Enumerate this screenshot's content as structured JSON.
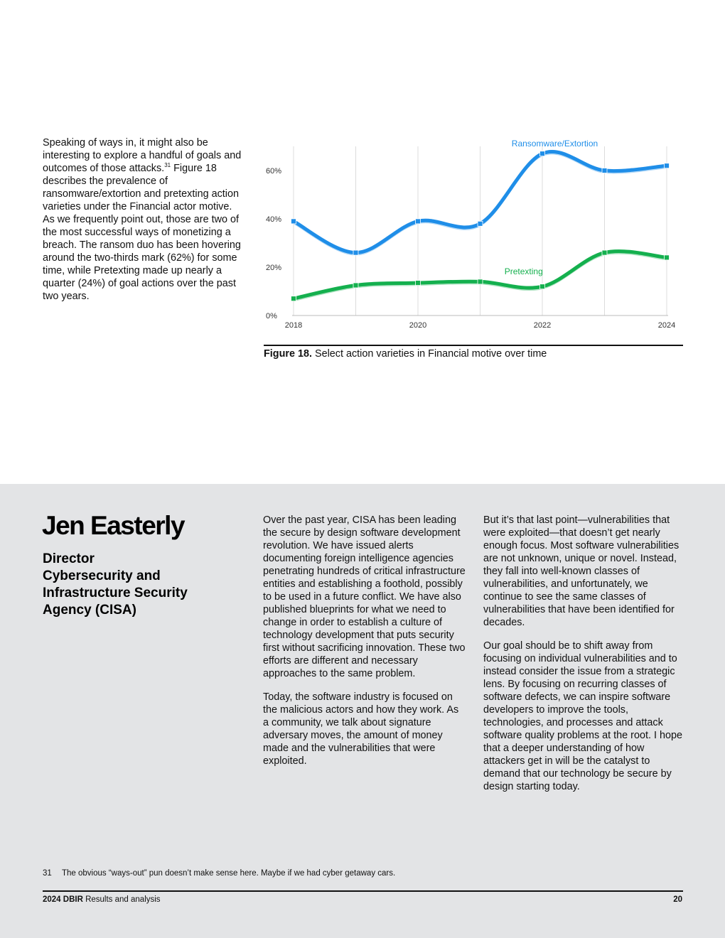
{
  "intro": {
    "part1": "Speaking of ways in, it might also be interesting to explore a handful of goals and outcomes of those attacks.",
    "footnote_ref": "31",
    "part2": " Figure 18 describes the prevalence of ransomware/extortion and pretexting action varieties under the Financial actor motive. As we frequently point out, those are two of the most successful ways of monetizing a breach. The ransom duo has been hovering around the two-thirds mark (62%) for some time, while Pretexting made up nearly a quarter (24%) of goal actions over the past two years."
  },
  "figure": {
    "label": "Figure 18.",
    "caption": " Select action varieties in Financial motive over time"
  },
  "chart_data": {
    "type": "line",
    "x": [
      2018,
      2019,
      2020,
      2021,
      2022,
      2023,
      2024
    ],
    "xticks": [
      "2018",
      "2020",
      "2022",
      "2024"
    ],
    "yticks": [
      "0%",
      "20%",
      "40%",
      "60%"
    ],
    "ylim": [
      0,
      70
    ],
    "xlim": [
      2018,
      2024
    ],
    "grid": "vertical",
    "series": [
      {
        "name": "Ransomware/Extortion",
        "color": "#1f8ee8",
        "values": [
          39,
          26,
          39,
          38,
          67,
          60,
          62
        ]
      },
      {
        "name": "Pretexting",
        "color": "#14b04e",
        "values": [
          7,
          12.5,
          13.5,
          14,
          12,
          26,
          24
        ]
      }
    ]
  },
  "profile": {
    "name": "Jen Easterly",
    "title_lines": [
      "Director",
      "Cybersecurity and",
      "Infrastructure Security",
      "Agency (CISA)"
    ]
  },
  "column1": {
    "p1": "Over the past year, CISA has been leading the secure by design software development revolution. We have issued alerts documenting foreign intelligence agencies penetrating hundreds of critical infrastructure entities and establishing a foothold, possibly to be used in a future conflict. We have also published blueprints for what we need to change in order to establish a culture of technology development that puts security first without sacrificing innovation. These two efforts are different and necessary approaches to the same problem.",
    "p2": "Today, the software industry is focused on the malicious actors and how they work. As a community, we talk about signature adversary moves, the amount of money made and the vulnerabilities that were exploited."
  },
  "column2": {
    "p1": "But it’s that last point—vulnerabilities that were exploited—that doesn’t get nearly enough focus. Most software vulnerabilities are not unknown, unique or novel. Instead, they fall into well-known classes of vulnerabilities, and unfortunately, we continue to see the same classes of vulnerabilities that have been identified for decades.",
    "p2": "Our goal should be to shift away from focusing on individual vulnerabilities and to instead consider the issue from a strategic lens. By focusing on recurring classes of software defects, we can inspire software developers to improve the tools, technologies, and processes and attack software quality problems at the root. I hope that a deeper understanding of how attackers get in will be the catalyst to demand that our technology be secure by design starting today."
  },
  "footnote": {
    "number": "31",
    "text": "The obvious “ways-out” pun doesn’t make sense here. Maybe if we had cyber getaway cars."
  },
  "footer": {
    "report": "2024 DBIR",
    "section": " Results and analysis",
    "page": "20"
  }
}
